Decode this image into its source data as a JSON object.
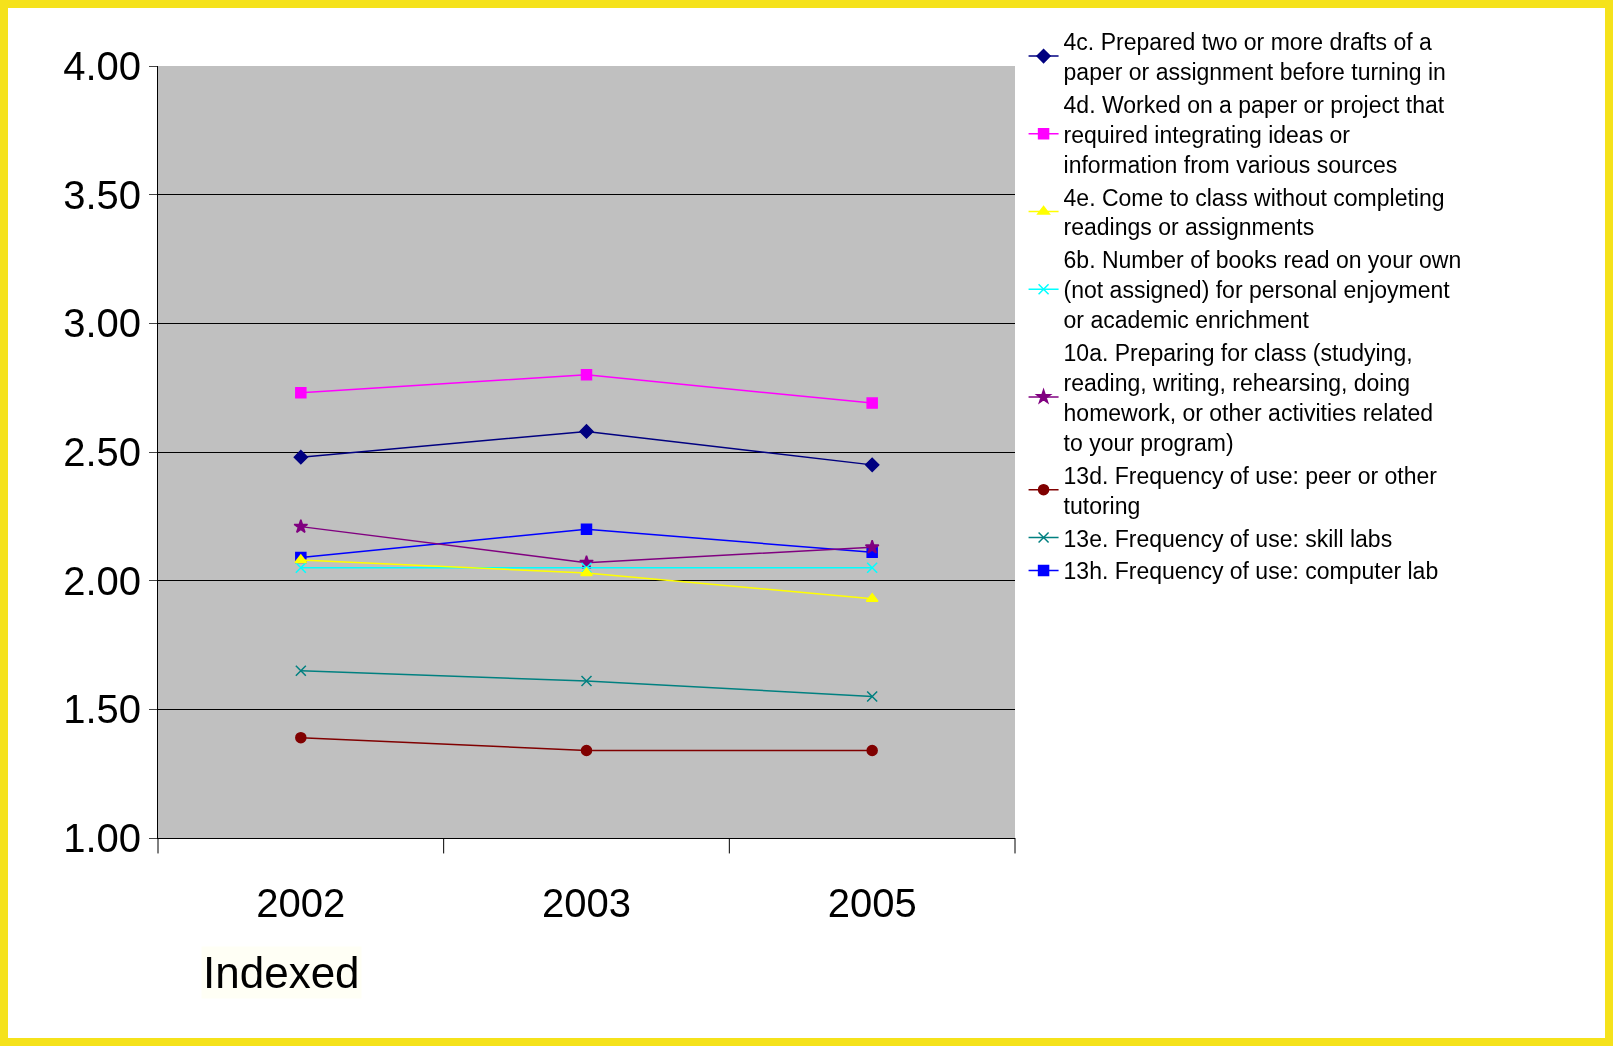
{
  "chart_data": {
    "type": "line",
    "categories": [
      "2002",
      "2003",
      "2005"
    ],
    "ylim": [
      1,
      4
    ],
    "yticks": [
      {
        "value": 1,
        "label": "1.00"
      },
      {
        "value": 1.5,
        "label": "1.50"
      },
      {
        "value": 2,
        "label": "2.00"
      },
      {
        "value": 2.5,
        "label": "2.50"
      },
      {
        "value": 3,
        "label": "3.00"
      },
      {
        "value": 3.5,
        "label": "3.50"
      },
      {
        "value": 4,
        "label": "4.00"
      }
    ],
    "grid": "y",
    "legend": "right",
    "annotations": [
      "Indexed"
    ],
    "series": [
      {
        "name": "4c. Prepared two or more drafts of a paper or assignment before turning in",
        "color": "#000080",
        "marker": "diamond",
        "values": [
          2.48,
          2.58,
          2.45
        ]
      },
      {
        "name": "4d. Worked on a paper or project that required integrating ideas or information from various sources",
        "color": "#ff00ff",
        "marker": "square",
        "values": [
          2.73,
          2.8,
          2.69
        ]
      },
      {
        "name": "4e. Come to class without completing readings or assignments",
        "color": "#ffff00",
        "marker": "triangle",
        "values": [
          2.08,
          2.03,
          1.93
        ]
      },
      {
        "name": "6b. Number of books read on your own (not assigned) for personal enjoyment or academic enrichment",
        "color": "#00ffff",
        "marker": "cross",
        "values": [
          2.05,
          2.05,
          2.05
        ]
      },
      {
        "name": "10a. Preparing for class (studying, reading, writing, rehearsing, doing homework, or other activities related to your program)",
        "color": "#800080",
        "marker": "star",
        "values": [
          2.21,
          2.07,
          2.13
        ]
      },
      {
        "name": "13d. Frequency of use: peer or other tutoring",
        "color": "#800000",
        "marker": "circle",
        "values": [
          1.39,
          1.34,
          1.34
        ]
      },
      {
        "name": "13e. Frequency of use: skill labs",
        "color": "#008080",
        "marker": "cross",
        "values": [
          1.65,
          1.61,
          1.55
        ]
      },
      {
        "name": "13h. Frequency of use: computer lab",
        "color": "#0000ff",
        "marker": "square",
        "values": [
          2.09,
          2.2,
          2.11
        ]
      }
    ]
  }
}
